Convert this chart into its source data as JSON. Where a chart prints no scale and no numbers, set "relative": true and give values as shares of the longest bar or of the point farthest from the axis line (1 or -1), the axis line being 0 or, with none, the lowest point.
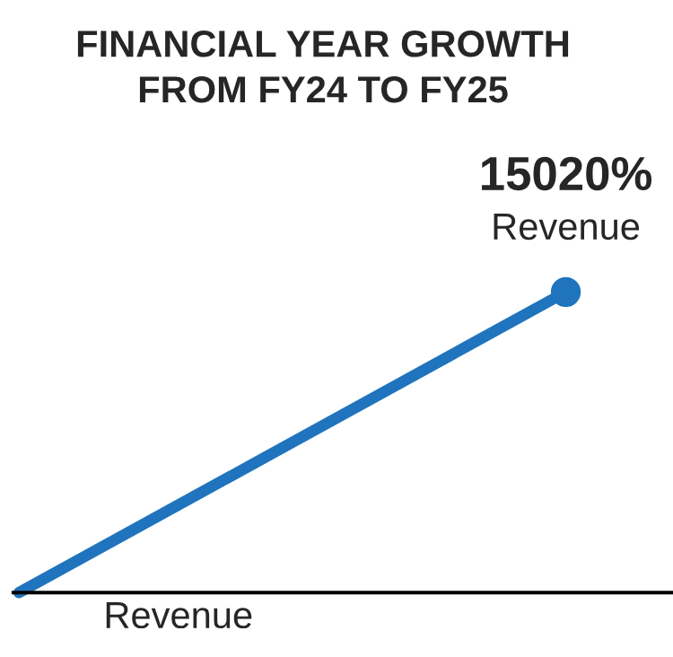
{
  "chart_data": {
    "type": "line",
    "title": "FINANCIAL YEAR GROWTH\nFROM FY24 TO FY25",
    "categories": [
      null,
      null
    ],
    "relative": true,
    "series": [
      {
        "color": "#1f74bd",
        "values": [
          0,
          1
        ]
      }
    ],
    "marker": "circle",
    "xlabel": "Revenue",
    "annotations": [
      "15020%",
      "Revenue"
    ]
  }
}
